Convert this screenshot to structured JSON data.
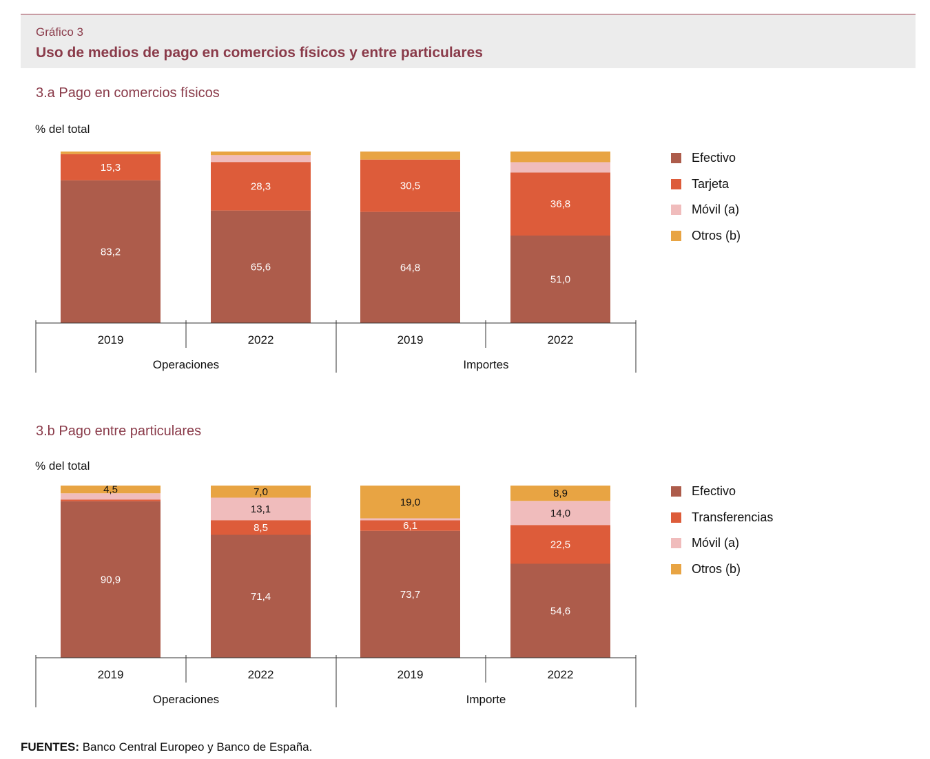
{
  "header": {
    "kicker": "Gráfico 3",
    "title": "Uso de medios de pago en comercios físicos y entre particulares"
  },
  "colors": {
    "efectivo": "#ad5c4b",
    "tarjeta": "#dd5c3a",
    "movil": "#f0bcbc",
    "otros": "#e8a443"
  },
  "chart_data": [
    {
      "type": "bar",
      "stacked": true,
      "title": "3.a  Pago en comercios físicos",
      "ylabel": "% del total",
      "ylim": [
        0,
        100
      ],
      "categories": [
        "2019",
        "2022",
        "2019",
        "2022"
      ],
      "groups": [
        "Operaciones",
        "Importes"
      ],
      "series": [
        {
          "name": "Efectivo",
          "color": "#ad5c4b",
          "values": [
            83.2,
            65.6,
            64.8,
            51.0
          ],
          "labels": [
            "83,2",
            "65,6",
            "64,8",
            "51,0"
          ]
        },
        {
          "name": "Tarjeta",
          "color": "#dd5c3a",
          "values": [
            15.3,
            28.3,
            30.5,
            36.8
          ],
          "labels": [
            "15,3",
            "28,3",
            "30,5",
            "36,8"
          ]
        },
        {
          "name": "Móvil (a)",
          "color": "#f0bcbc",
          "values": [
            0,
            4.0,
            0,
            6.0
          ],
          "labels": [
            "",
            "",
            "",
            ""
          ]
        },
        {
          "name": "Otros (b)",
          "color": "#e8a443",
          "values": [
            1.5,
            2.1,
            4.7,
            6.2
          ],
          "labels": [
            "",
            "",
            "",
            ""
          ]
        }
      ],
      "legend_position": "right"
    },
    {
      "type": "bar",
      "stacked": true,
      "title": "3.b  Pago entre particulares",
      "ylabel": "% del total",
      "ylim": [
        0,
        100
      ],
      "categories": [
        "2019",
        "2022",
        "2019",
        "2022"
      ],
      "groups": [
        "Operaciones",
        "Importe"
      ],
      "series": [
        {
          "name": "Efectivo",
          "color": "#ad5c4b",
          "values": [
            90.9,
            71.4,
            73.7,
            54.6
          ],
          "labels": [
            "90,9",
            "71,4",
            "73,7",
            "54,6"
          ]
        },
        {
          "name": "Transferencias",
          "color": "#dd5c3a",
          "values": [
            1.0,
            8.5,
            6.1,
            22.5
          ],
          "labels": [
            "",
            "8,5",
            "6,1",
            "22,5"
          ]
        },
        {
          "name": "Móvil (a)",
          "color": "#f0bcbc",
          "values": [
            3.6,
            13.1,
            1.2,
            14.0
          ],
          "labels": [
            "",
            "13,1",
            "",
            "14,0"
          ]
        },
        {
          "name": "Otros (b)",
          "color": "#e8a443",
          "values": [
            4.5,
            7.0,
            19.0,
            8.9
          ],
          "labels": [
            "4,5",
            "7,0",
            "19,0",
            "8,9"
          ]
        }
      ],
      "legend_position": "right"
    }
  ],
  "source": {
    "label": "FUENTES:",
    "text": " Banco Central Europeo y Banco de España."
  }
}
